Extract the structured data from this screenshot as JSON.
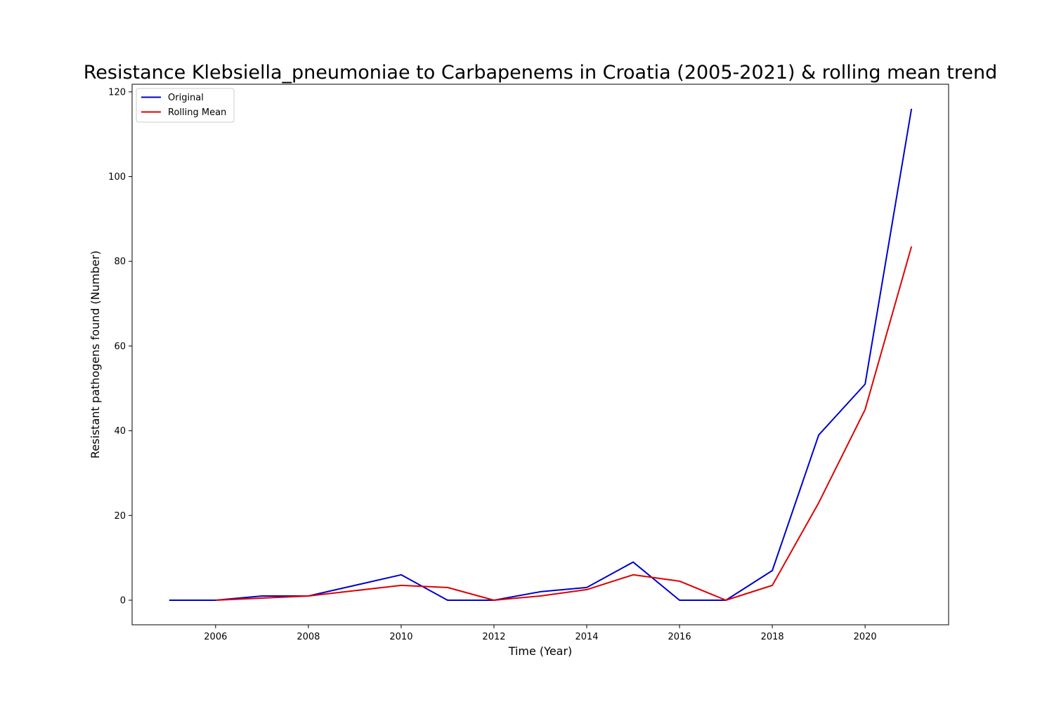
{
  "chart_data": {
    "type": "line",
    "title": "Resistance Klebsiella_pneumoniae to Carbapenems in Croatia (2005-2021) & rolling mean trend",
    "xlabel": "Time (Year)",
    "ylabel": "Resistant pathogens found (Number)",
    "x": [
      2005,
      2006,
      2007,
      2008,
      2009,
      2010,
      2011,
      2012,
      2013,
      2014,
      2015,
      2016,
      2017,
      2018,
      2019,
      2020,
      2021
    ],
    "series": [
      {
        "name": "Original",
        "color": "#0000cc",
        "values": [
          0,
          0,
          1,
          1,
          3.5,
          6,
          0,
          0,
          2,
          3,
          9,
          0,
          0,
          7,
          39,
          51,
          116
        ]
      },
      {
        "name": "Rolling Mean",
        "color": "#dd0000",
        "values": [
          null,
          0,
          0.5,
          1,
          2.25,
          3.5,
          3,
          0,
          1,
          2.5,
          6,
          4.5,
          0,
          3.5,
          23,
          45,
          83.5
        ]
      }
    ],
    "xticks": [
      2006,
      2008,
      2010,
      2012,
      2014,
      2016,
      2018,
      2020
    ],
    "yticks": [
      0,
      20,
      40,
      60,
      80,
      100,
      120
    ],
    "xlim": [
      2004.2,
      2021.8
    ],
    "ylim": [
      -5.8,
      121.8
    ],
    "grid": false,
    "legend_position": "upper-left"
  }
}
